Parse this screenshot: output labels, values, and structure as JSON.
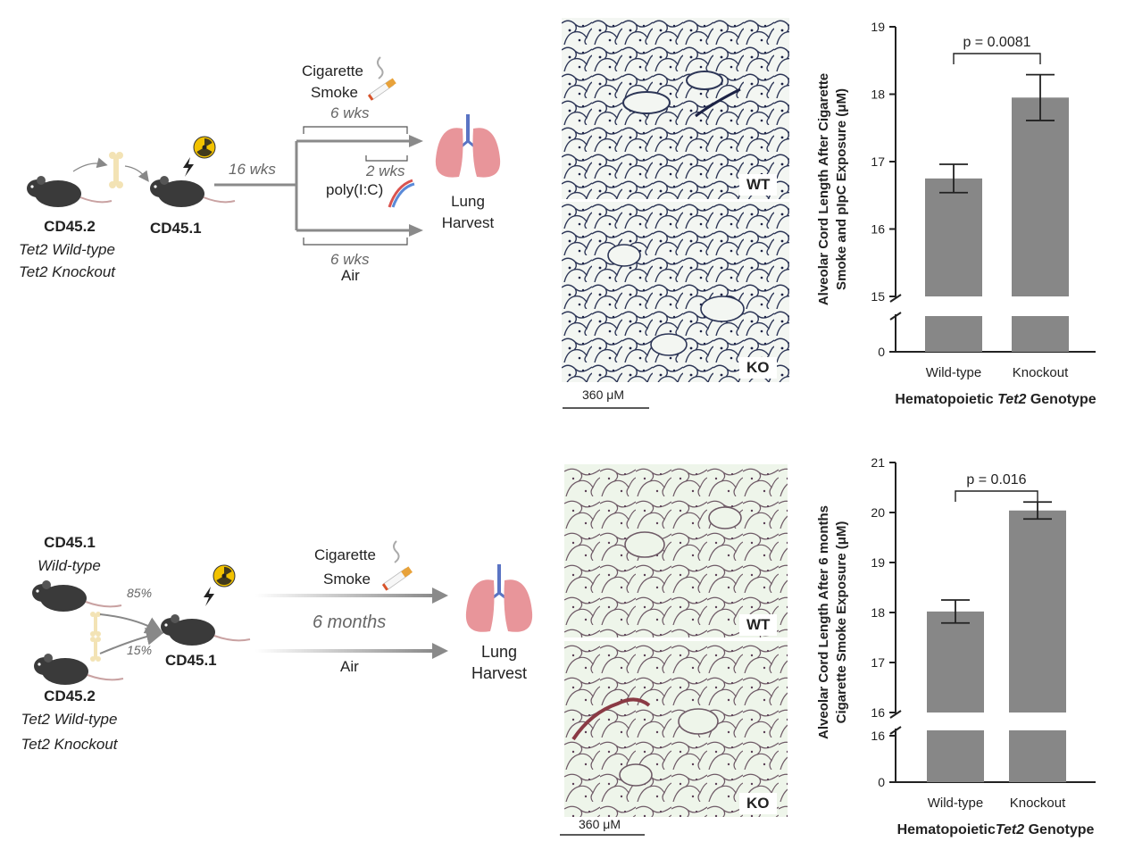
{
  "panel_top": {
    "donor": {
      "strain": "CD45.2",
      "genotype1": "Tet2 Wild-type",
      "genotype2": "Tet2 Knockout"
    },
    "recipient": "CD45.1",
    "time1": "16 wks",
    "smoke_label1": "Cigarette",
    "smoke_label2": "Smoke",
    "smoke_duration": "6 wks",
    "polyic_duration": "2 wks",
    "polyic_label": "poly(I:C)",
    "air_duration": "6 wks",
    "air_label": "Air",
    "harvest1": "Lung",
    "harvest2": "Harvest",
    "histo_wt": "WT",
    "histo_ko": "KO",
    "scale_bar": "360 μM"
  },
  "panel_bottom": {
    "donor_wt": {
      "strain": "CD45.1",
      "genotype": "Wild-type"
    },
    "donor_tet2": {
      "strain": "CD45.2",
      "genotype1": "Tet2 Wild-type",
      "genotype2": "Tet2 Knockout"
    },
    "pct_wt": "85%",
    "pct_tet2": "15%",
    "recipient": "CD45.1",
    "smoke_label1": "Cigarette",
    "smoke_label2": "Smoke",
    "duration": "6 months",
    "air_label": "Air",
    "harvest1": "Lung",
    "harvest2": "Harvest",
    "histo_wt": "WT",
    "histo_ko": "KO",
    "scale_bar": "360 μM"
  },
  "chart_data": [
    {
      "type": "bar",
      "categories": [
        "Wild-type",
        "Knockout"
      ],
      "values": [
        16.75,
        17.95
      ],
      "errors": [
        0.21,
        0.34
      ],
      "ylabel_line1": "Alveolar Cord Length After Cigarette",
      "ylabel_line2": "Smoke and pIpC Exposure (μM)",
      "xlabel_prefix": "Hematopoietic ",
      "xlabel_gene": "Tet2",
      "xlabel_suffix": " Genotype",
      "ylim": [
        15,
        19
      ],
      "axis_break": true,
      "yticks": [
        "15",
        "16",
        "17",
        "18",
        "19"
      ],
      "ytick_zero": "0",
      "pvalue": "p = 0.0081",
      "bar_color": "#878787"
    },
    {
      "type": "bar",
      "categories": [
        "Wild-type",
        "Knockout"
      ],
      "values": [
        18.02,
        20.04
      ],
      "errors": [
        0.23,
        0.17
      ],
      "ylabel_line1": "Alveolar Cord Length After 6 months",
      "ylabel_line2": "Cigarette Smoke Exposure (μM)",
      "xlabel_prefix": "Hematopoietic",
      "xlabel_gene": "Tet2",
      "xlabel_suffix": " Genotype",
      "ylim": [
        16,
        21
      ],
      "axis_break": true,
      "yticks": [
        "16",
        "17",
        "18",
        "19",
        "20",
        "21"
      ],
      "ytick_low": "16",
      "ytick_zero": "0",
      "pvalue": "p = 0.016",
      "bar_color": "#878787"
    }
  ]
}
